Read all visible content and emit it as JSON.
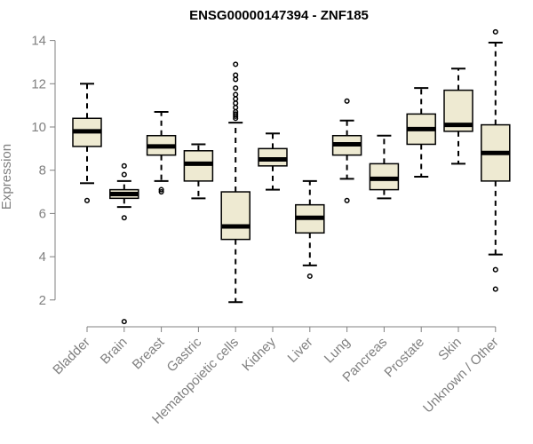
{
  "chart_data": {
    "type": "boxplot",
    "title": "ENSG00000147394 - ZNF185",
    "ylabel": "Expression",
    "xlabel": "",
    "ylim": [
      0.8,
      14.6
    ],
    "yticks": [
      2,
      4,
      6,
      8,
      10,
      12,
      14
    ],
    "box_color": "#eeead2",
    "categories": [
      "Bladder",
      "Brain",
      "Breast",
      "Gastric",
      "Hematopoietic cells",
      "Kidney",
      "Liver",
      "Lung",
      "Pancreas",
      "Prostate",
      "Skin",
      "Unknown / Other"
    ],
    "boxes": [
      {
        "category": "Bladder",
        "whisker_low": 7.4,
        "q1": 9.1,
        "median": 9.8,
        "q3": 10.4,
        "whisker_high": 12.0,
        "outliers": [
          6.6
        ]
      },
      {
        "category": "Brain",
        "whisker_low": 6.3,
        "q1": 6.7,
        "median": 6.9,
        "q3": 7.1,
        "whisker_high": 7.5,
        "outliers": [
          8.2,
          7.8,
          5.8,
          1.0
        ]
      },
      {
        "category": "Breast",
        "whisker_low": 7.5,
        "q1": 8.7,
        "median": 9.1,
        "q3": 9.6,
        "whisker_high": 10.7,
        "outliers": [
          7.1,
          7.0
        ]
      },
      {
        "category": "Gastric",
        "whisker_low": 6.7,
        "q1": 7.5,
        "median": 8.3,
        "q3": 8.9,
        "whisker_high": 9.2,
        "outliers": []
      },
      {
        "category": "Hematopoietic cells",
        "whisker_low": 1.9,
        "q1": 4.8,
        "median": 5.4,
        "q3": 7.0,
        "whisker_high": 10.2,
        "outliers": [
          10.4,
          10.5,
          10.6,
          10.7,
          10.9,
          11.1,
          11.3,
          11.5,
          11.8,
          12.2,
          12.4,
          12.9
        ]
      },
      {
        "category": "Kidney",
        "whisker_low": 7.1,
        "q1": 8.2,
        "median": 8.5,
        "q3": 9.0,
        "whisker_high": 9.7,
        "outliers": []
      },
      {
        "category": "Liver",
        "whisker_low": 3.6,
        "q1": 5.1,
        "median": 5.8,
        "q3": 6.4,
        "whisker_high": 7.5,
        "outliers": [
          3.1
        ]
      },
      {
        "category": "Lung",
        "whisker_low": 7.6,
        "q1": 8.7,
        "median": 9.2,
        "q3": 9.6,
        "whisker_high": 10.3,
        "outliers": [
          11.2,
          6.6
        ]
      },
      {
        "category": "Pancreas",
        "whisker_low": 6.7,
        "q1": 7.1,
        "median": 7.6,
        "q3": 8.3,
        "whisker_high": 9.6,
        "outliers": []
      },
      {
        "category": "Prostate",
        "whisker_low": 7.7,
        "q1": 9.2,
        "median": 9.9,
        "q3": 10.6,
        "whisker_high": 11.8,
        "outliers": []
      },
      {
        "category": "Skin",
        "whisker_low": 8.3,
        "q1": 9.8,
        "median": 10.1,
        "q3": 11.7,
        "whisker_high": 12.7,
        "outliers": []
      },
      {
        "category": "Unknown / Other",
        "whisker_low": 4.1,
        "q1": 7.5,
        "median": 8.8,
        "q3": 10.1,
        "whisker_high": 13.9,
        "outliers": [
          14.4,
          3.4,
          2.5
        ]
      }
    ]
  }
}
